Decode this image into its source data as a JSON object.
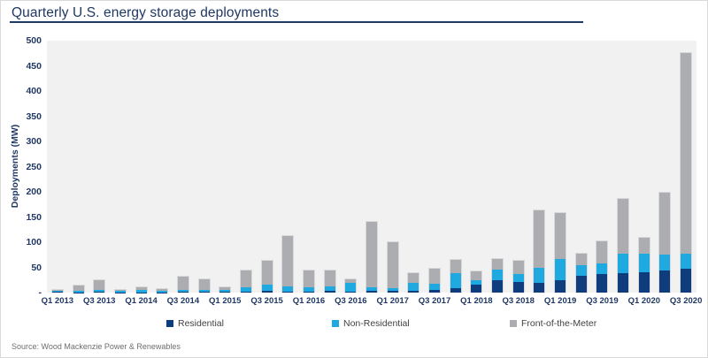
{
  "card": {
    "title": "Quarterly U.S. energy storage deployments"
  },
  "source_label": "Source: Wood Mackenzie Power & Renewables",
  "colors": {
    "title_text": "#1f3864",
    "axis_text": "#1f3864",
    "residential": "#0f3c7d",
    "non_residential": "#1fa9e1",
    "front_of_meter": "#abadb0",
    "plot_background": "#f1f1f2",
    "legend_text": "#414042",
    "source_text": "#6d6e71"
  },
  "chart_data": {
    "type": "bar",
    "stacked": true,
    "title": "Quarterly U.S. energy storage deployments",
    "xlabel": "",
    "ylabel": "Deployments (MW)",
    "ylim": [
      0,
      500
    ],
    "grid": false,
    "legend_position": "bottom",
    "y_ticks": [
      500,
      450,
      400,
      350,
      300,
      250,
      200,
      150,
      100,
      50,
      0
    ],
    "y_tick_labels": [
      "500",
      "450",
      "400",
      "350",
      "300",
      "250",
      "200",
      "150",
      "100",
      "50",
      "-"
    ],
    "categories": [
      "Q1 2013",
      "Q2 2013",
      "Q3 2013",
      "Q4 2013",
      "Q1 2014",
      "Q2 2014",
      "Q3 2014",
      "Q4 2014",
      "Q1 2015",
      "Q2 2015",
      "Q3 2015",
      "Q4 2015",
      "Q1 2016",
      "Q2 2016",
      "Q3 2016",
      "Q4 2016",
      "Q1 2017",
      "Q2 2017",
      "Q3 2017",
      "Q4 2017",
      "Q1 2018",
      "Q2 2018",
      "Q3 2018",
      "Q4 2018",
      "Q1 2019",
      "Q2 2019",
      "Q3 2019",
      "Q4 2019",
      "Q1 2020",
      "Q2 2020",
      "Q3 2020"
    ],
    "x_tick_labels": [
      "Q1 2013",
      "Q3 2013",
      "Q1 2014",
      "Q3 2014",
      "Q1 2015",
      "Q3 2015",
      "Q1 2016",
      "Q3 2016",
      "Q1 2017",
      "Q3 2017",
      "Q1 2018",
      "Q3 2018",
      "Q1 2019",
      "Q3 2019",
      "Q1 2020",
      "Q3 2020"
    ],
    "series": [
      {
        "name": "Residential",
        "color": "#0f3c7d",
        "values": [
          1,
          0.5,
          1,
          0.5,
          0.5,
          0.5,
          1,
          1,
          1,
          2,
          3,
          2,
          2,
          3,
          2,
          4,
          3,
          4,
          6,
          9,
          15,
          24,
          21,
          19,
          25,
          34,
          37,
          38,
          41,
          44,
          47
        ]
      },
      {
        "name": "Non-Residential",
        "color": "#1fa9e1",
        "values": [
          3,
          3,
          4,
          3,
          4,
          3,
          4,
          5,
          4,
          9,
          12,
          10,
          8,
          10,
          17,
          7,
          6,
          16,
          12,
          29,
          10,
          21,
          15,
          30,
          42,
          21,
          21,
          40,
          36,
          31,
          31
        ]
      },
      {
        "name": "Front-of-the-Meter",
        "color": "#abadb0",
        "values": [
          1,
          11,
          20,
          1,
          6,
          3,
          27,
          21,
          5,
          33,
          48,
          100,
          34,
          31,
          8,
          129,
          91,
          19,
          29,
          27,
          18,
          21,
          28,
          114,
          91,
          23,
          43,
          108,
          31,
          123,
          397
        ]
      }
    ]
  },
  "legend": {
    "left_positions": [
      187,
      374,
      575
    ]
  }
}
